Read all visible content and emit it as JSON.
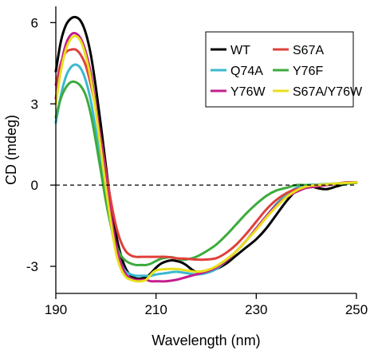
{
  "chart_data": {
    "type": "line",
    "title": "",
    "xlabel": "Wavelength (nm)",
    "ylabel": "CD (mdeg)",
    "xlim": [
      190,
      250
    ],
    "ylim": [
      -4.0,
      6.6
    ],
    "xticks": [
      190,
      210,
      230,
      250
    ],
    "yticks": [
      -3,
      0,
      3,
      6
    ],
    "xtick_labels": [
      "190",
      "210",
      "230",
      "250"
    ],
    "ytick_labels": [
      "-3",
      "0",
      "3",
      "6"
    ],
    "reference_line": {
      "y": 0,
      "style": "dashed"
    },
    "legend": {
      "placement": "top-right",
      "columns": 2
    },
    "grid": false,
    "series": [
      {
        "name": "WT",
        "color": "#000000",
        "x": [
          190,
          191,
          192,
          193,
          194,
          195,
          196,
          197,
          198,
          199,
          200,
          201,
          202,
          203,
          204,
          205,
          206,
          207,
          208,
          209,
          210,
          211,
          212,
          213,
          214,
          215,
          216,
          217,
          218,
          220,
          222,
          224,
          226,
          228,
          230,
          232,
          234,
          236,
          238,
          240,
          242,
          244,
          246,
          248,
          250
        ],
        "y": [
          4.2,
          5.3,
          5.9,
          6.15,
          6.2,
          6.05,
          5.6,
          4.8,
          3.6,
          2.2,
          0.7,
          -0.7,
          -1.8,
          -2.6,
          -3.1,
          -3.35,
          -3.45,
          -3.45,
          -3.4,
          -3.25,
          -3.05,
          -2.9,
          -2.82,
          -2.78,
          -2.8,
          -2.85,
          -2.95,
          -3.1,
          -3.2,
          -3.2,
          -3.1,
          -2.9,
          -2.6,
          -2.3,
          -2.0,
          -1.6,
          -1.1,
          -0.6,
          -0.2,
          0.0,
          -0.1,
          -0.15,
          -0.05,
          0.05,
          0.1
        ]
      },
      {
        "name": "S67A",
        "color": "#e0403a",
        "x": [
          190,
          191,
          192,
          193,
          194,
          195,
          196,
          197,
          198,
          199,
          200,
          201,
          202,
          203,
          204,
          205,
          206,
          207,
          208,
          209,
          210,
          212,
          214,
          216,
          218,
          220,
          222,
          224,
          226,
          228,
          230,
          232,
          234,
          236,
          238,
          240,
          242,
          244,
          246,
          248,
          250
        ],
        "y": [
          3.7,
          4.5,
          4.9,
          5.0,
          5.0,
          4.8,
          4.4,
          3.7,
          2.8,
          1.7,
          0.5,
          -0.6,
          -1.5,
          -2.1,
          -2.45,
          -2.6,
          -2.65,
          -2.65,
          -2.65,
          -2.65,
          -2.65,
          -2.65,
          -2.7,
          -2.72,
          -2.75,
          -2.75,
          -2.7,
          -2.5,
          -2.2,
          -1.8,
          -1.35,
          -0.9,
          -0.55,
          -0.3,
          -0.15,
          -0.1,
          -0.05,
          0.0,
          0.05,
          0.1,
          0.1
        ]
      },
      {
        "name": "Q74A",
        "color": "#3ab8d0",
        "x": [
          190,
          191,
          192,
          193,
          194,
          195,
          196,
          197,
          198,
          199,
          200,
          201,
          202,
          203,
          204,
          205,
          206,
          207,
          208,
          209,
          210,
          212,
          214,
          216,
          218,
          220,
          222,
          224,
          226,
          228,
          230,
          232,
          234,
          236,
          238,
          240,
          242,
          244,
          246,
          248,
          250
        ],
        "y": [
          2.3,
          3.3,
          4.0,
          4.35,
          4.45,
          4.3,
          3.85,
          3.1,
          2.0,
          0.8,
          -0.4,
          -1.5,
          -2.4,
          -2.9,
          -3.2,
          -3.3,
          -3.35,
          -3.35,
          -3.35,
          -3.35,
          -3.3,
          -3.25,
          -3.2,
          -3.25,
          -3.3,
          -3.25,
          -3.1,
          -2.8,
          -2.45,
          -2.05,
          -1.6,
          -1.15,
          -0.7,
          -0.35,
          -0.1,
          0.0,
          0.02,
          0.04,
          0.06,
          0.08,
          0.1
        ]
      },
      {
        "name": "Y76F",
        "color": "#3cab3c",
        "x": [
          190,
          191,
          192,
          193,
          194,
          195,
          196,
          197,
          198,
          199,
          200,
          201,
          202,
          203,
          204,
          205,
          206,
          207,
          208,
          209,
          210,
          211,
          212,
          213,
          214,
          215,
          216,
          218,
          220,
          222,
          224,
          226,
          228,
          230,
          232,
          234,
          236,
          238,
          240,
          242,
          244,
          246,
          248,
          250
        ],
        "y": [
          2.5,
          3.2,
          3.6,
          3.8,
          3.8,
          3.65,
          3.3,
          2.6,
          1.6,
          0.5,
          -0.6,
          -1.5,
          -2.2,
          -2.6,
          -2.8,
          -2.9,
          -2.95,
          -2.95,
          -2.95,
          -2.9,
          -2.8,
          -2.72,
          -2.68,
          -2.66,
          -2.7,
          -2.75,
          -2.75,
          -2.65,
          -2.45,
          -2.2,
          -1.85,
          -1.45,
          -1.05,
          -0.7,
          -0.4,
          -0.2,
          -0.1,
          0.0,
          0.0,
          0.0,
          0.02,
          0.04,
          0.06,
          0.08
        ]
      },
      {
        "name": "Y76W",
        "color": "#c41d8c",
        "x": [
          190,
          191,
          192,
          193,
          194,
          195,
          196,
          197,
          198,
          199,
          200,
          201,
          202,
          203,
          204,
          205,
          206,
          207,
          208,
          209,
          210,
          212,
          214,
          216,
          218,
          220,
          222,
          224,
          226,
          228,
          230,
          232,
          234,
          236,
          238,
          240,
          242,
          244,
          246,
          248,
          250
        ],
        "y": [
          3.2,
          4.4,
          5.2,
          5.55,
          5.6,
          5.4,
          4.9,
          4.1,
          2.9,
          1.6,
          0.2,
          -1.1,
          -2.2,
          -2.9,
          -3.3,
          -3.45,
          -3.5,
          -3.5,
          -3.5,
          -3.55,
          -3.55,
          -3.55,
          -3.5,
          -3.4,
          -3.3,
          -3.2,
          -3.05,
          -2.8,
          -2.45,
          -2.05,
          -1.6,
          -1.15,
          -0.75,
          -0.45,
          -0.25,
          -0.1,
          -0.05,
          0.0,
          0.05,
          0.1,
          0.1
        ]
      },
      {
        "name": "S67A/Y76W",
        "color": "#e8e01c",
        "x": [
          190,
          191,
          192,
          193,
          194,
          195,
          196,
          197,
          198,
          199,
          200,
          201,
          202,
          203,
          204,
          205,
          206,
          207,
          208,
          209,
          210,
          212,
          214,
          216,
          218,
          220,
          222,
          224,
          226,
          228,
          230,
          232,
          234,
          236,
          238,
          240,
          242,
          244,
          246,
          248,
          250
        ],
        "y": [
          3.0,
          4.2,
          5.0,
          5.4,
          5.5,
          5.3,
          4.75,
          3.9,
          2.7,
          1.3,
          -0.1,
          -1.4,
          -2.5,
          -3.1,
          -3.4,
          -3.5,
          -3.55,
          -3.55,
          -3.5,
          -3.3,
          -3.15,
          -3.1,
          -3.1,
          -3.15,
          -3.2,
          -3.15,
          -3.0,
          -2.75,
          -2.45,
          -2.05,
          -1.65,
          -1.2,
          -0.8,
          -0.45,
          -0.2,
          -0.05,
          0.0,
          0.03,
          0.06,
          0.08,
          0.1
        ]
      }
    ]
  }
}
